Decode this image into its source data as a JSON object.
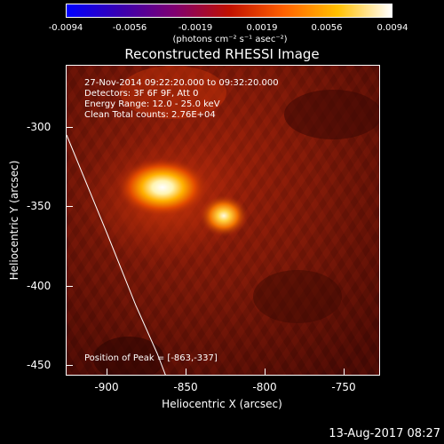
{
  "colorbar": {
    "tick_labels": [
      "-0.0094",
      "-0.0056",
      "-0.0019",
      "0.0019",
      "0.0056",
      "0.0094"
    ],
    "units": "(photons cm⁻² s⁻¹ asec⁻²)",
    "colors": [
      "#0000ff",
      "#3a00b0",
      "#800070",
      "#c01000",
      "#ff6000",
      "#ffc000",
      "#ffffff"
    ]
  },
  "plot": {
    "title": "Reconstructed RHESSI Image",
    "info": {
      "time_range": "27-Nov-2014 09:22:20.000 to 09:32:20.000",
      "detectors": "Detectors: 3F 6F 9F, Att 0",
      "energy_range": "Energy Range: 12.0 - 25.0 keV",
      "method_counts": "Clean     Total counts: 2.76E+04"
    },
    "peak_position": "Position of Peak = [-863,-337]",
    "x_ticks": [
      "-900",
      "-850",
      "-800",
      "-750"
    ],
    "y_ticks": [
      "-300",
      "-350",
      "-400",
      "-450"
    ],
    "xlabel": "Heliocentric X (arcsec)",
    "ylabel": "Heliocentric Y (arcsec)",
    "sources": [
      {
        "x": -863,
        "y": -337,
        "relative_intensity": 1.0
      },
      {
        "x": -824,
        "y": -356,
        "relative_intensity": 0.85
      }
    ]
  },
  "footer": {
    "timestamp": "13-Aug-2017 08:27"
  }
}
